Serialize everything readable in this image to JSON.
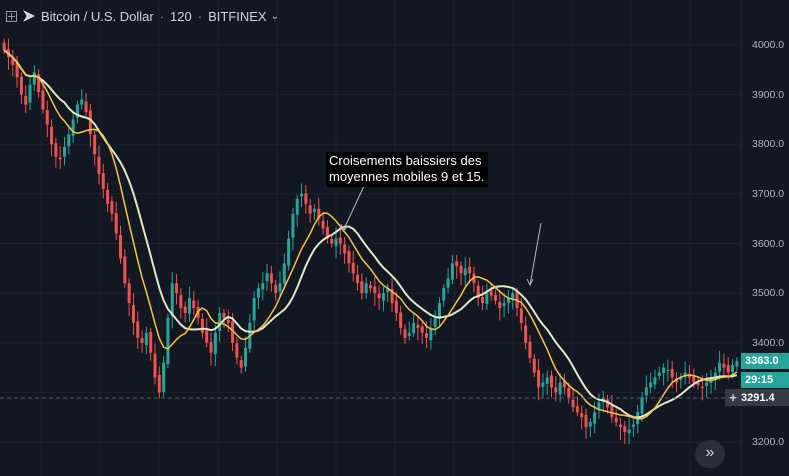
{
  "header": {
    "symbol": "Bitcoin / U.S. Dollar",
    "separator": "·",
    "interval": "120",
    "exchange": "BITFINEX"
  },
  "annotation": {
    "text": "Croisements baissiers des\nmoyennes mobiles 9 et 15."
  },
  "price_axis": {
    "labels": [
      "4000.0",
      "3900.0",
      "3800.0",
      "3700.0",
      "3600.0",
      "3500.0",
      "3400.0",
      "3200.0"
    ],
    "last_price": "3363.0",
    "countdown": "29:15",
    "cursor_price": "3291.4"
  },
  "colors": {
    "background": "#131722",
    "up_candle": "#26a69a",
    "down_candle": "#ef5350",
    "ma9": "#f6c343",
    "ma15": "#dfe8c8",
    "last_price_badge": "#26a69a"
  },
  "icons": {
    "header_toggle": "plus-square-icon",
    "logo": "tradingview-icon",
    "dropdown": "chevron-down-icon",
    "cursor": "crosshair-icon",
    "scroll": "double-chevron-right-icon"
  },
  "chart_data": {
    "type": "candlestick",
    "y_range": [
      3160,
      4050
    ],
    "grid": true,
    "moving_averages": [
      9,
      15
    ],
    "closes": [
      3990,
      3975,
      3960,
      3935,
      3900,
      3880,
      3920,
      3945,
      3905,
      3870,
      3840,
      3800,
      3775,
      3770,
      3795,
      3820,
      3850,
      3880,
      3890,
      3865,
      3820,
      3780,
      3740,
      3710,
      3680,
      3660,
      3620,
      3570,
      3520,
      3480,
      3440,
      3410,
      3400,
      3420,
      3380,
      3330,
      3300,
      3360,
      3450,
      3520,
      3500,
      3470,
      3460,
      3490,
      3470,
      3450,
      3420,
      3400,
      3380,
      3420,
      3460,
      3450,
      3440,
      3400,
      3370,
      3350,
      3390,
      3440,
      3490,
      3510,
      3520,
      3540,
      3520,
      3500,
      3520,
      3560,
      3610,
      3660,
      3690,
      3700,
      3680,
      3660,
      3670,
      3650,
      3630,
      3610,
      3600,
      3610,
      3600,
      3580,
      3560,
      3540,
      3520,
      3500,
      3520,
      3510,
      3500,
      3490,
      3500,
      3510,
      3480,
      3460,
      3430,
      3410,
      3420,
      3440,
      3430,
      3420,
      3410,
      3430,
      3450,
      3480,
      3510,
      3530,
      3560,
      3555,
      3540,
      3550,
      3540,
      3520,
      3490,
      3480,
      3500,
      3495,
      3485,
      3470,
      3480,
      3490,
      3500,
      3470,
      3440,
      3400,
      3370,
      3340,
      3310,
      3320,
      3330,
      3310,
      3300,
      3320,
      3310,
      3290,
      3270,
      3260,
      3250,
      3230,
      3240,
      3260,
      3280,
      3290,
      3270,
      3250,
      3240,
      3230,
      3220,
      3225,
      3235,
      3260,
      3290,
      3310,
      3320,
      3330,
      3340,
      3350,
      3345,
      3330,
      3320,
      3330,
      3340,
      3330,
      3320,
      3315,
      3310,
      3320,
      3330,
      3340,
      3360,
      3350,
      3340,
      3355,
      3363
    ]
  }
}
